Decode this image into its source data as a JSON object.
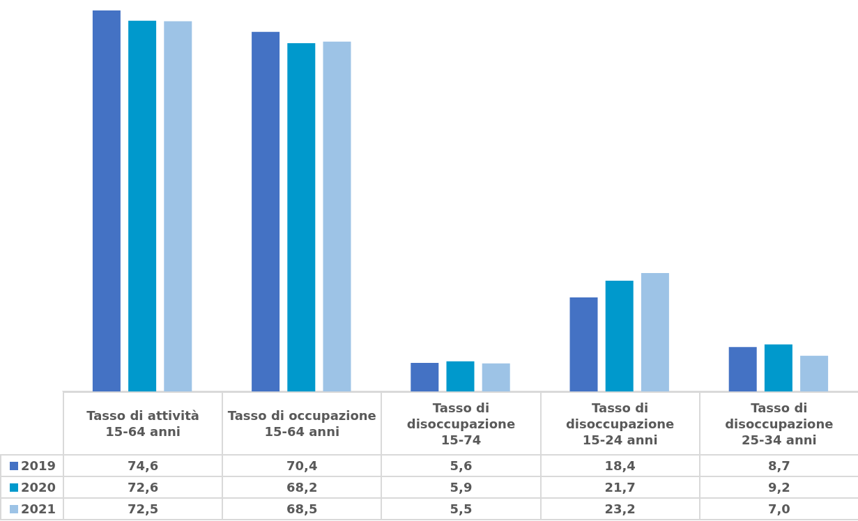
{
  "chart_data": {
    "type": "bar",
    "categories": [
      "Tasso di attività\n15-64 anni",
      "Tasso di occupazione\n15-64 anni",
      "Tasso di\ndisoccupazione\n15-74",
      "Tasso di\ndisoccupazione\n15-24 anni",
      "Tasso di\ndisoccupazione\n25-34 anni"
    ],
    "series": [
      {
        "name": "2019",
        "color": "#4472c4",
        "values": [
          74.6,
          70.4,
          5.6,
          18.4,
          8.7
        ],
        "value_labels": [
          "74,6",
          "70,4",
          "5,6",
          "18,4",
          "8,7"
        ]
      },
      {
        "name": "2020",
        "color": "#0099cc",
        "values": [
          72.6,
          68.2,
          5.9,
          21.7,
          9.2
        ],
        "value_labels": [
          "72,6",
          "68,2",
          "5,9",
          "21,7",
          "9,2"
        ]
      },
      {
        "name": "2021",
        "color": "#9dc3e6",
        "values": [
          72.5,
          68.5,
          5.5,
          23.2,
          7.0
        ],
        "value_labels": [
          "72,5",
          "68,5",
          "5,5",
          "23,2",
          "7,0"
        ]
      }
    ],
    "grid": false,
    "legend": "bottom"
  }
}
